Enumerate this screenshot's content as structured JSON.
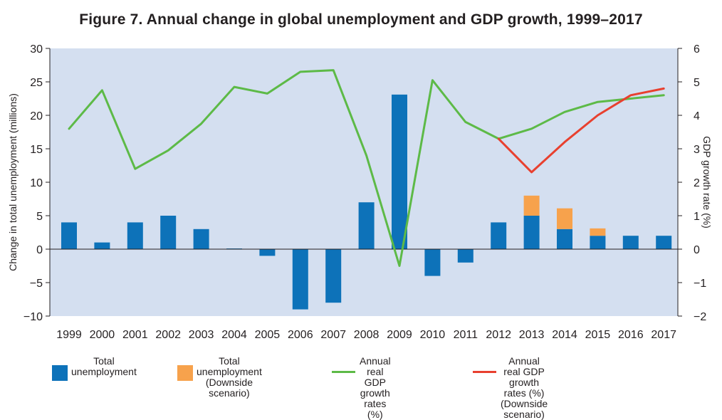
{
  "colors": {
    "plot_bg": "#d4dff0",
    "bar_total": "#0d72b9",
    "bar_downside": "#f7a24c",
    "line_gdp": "#5dba47",
    "line_gdp_downside": "#e8402f",
    "axis": "#231f20"
  },
  "chart_data": {
    "type": "bar",
    "title": "Figure 7. Annual change in global unemployment and GDP growth, 1999–2017",
    "ylabel": "Change in total unemployment (millions)",
    "y2label": "GDP growth rate (%)",
    "ylim": [
      -10,
      30
    ],
    "y_ticks": [
      30,
      25,
      20,
      15,
      10,
      5,
      0,
      -5,
      -10
    ],
    "y_tick_labels": [
      "30",
      "25",
      "20",
      "15",
      "10",
      "5",
      "0",
      "−5",
      "−10"
    ],
    "y2lim": [
      -2,
      6
    ],
    "y2_ticks": [
      6,
      5,
      4,
      3,
      2,
      1,
      0,
      -1,
      -2
    ],
    "y2_tick_labels": [
      "6",
      "5",
      "4",
      "3",
      "2",
      "1",
      "0",
      "−1",
      "−2"
    ],
    "categories": [
      "1999",
      "2000",
      "2001",
      "2002",
      "2003",
      "2004",
      "2005",
      "2006",
      "2007",
      "2008",
      "2009",
      "2010",
      "2011",
      "2012",
      "2013",
      "2014",
      "2015",
      "2016",
      "2017"
    ],
    "series": [
      {
        "name": "Total unemployment",
        "type": "bar",
        "axis": "left",
        "values": [
          4,
          1,
          4,
          5,
          3,
          0.1,
          -1,
          -9,
          -8,
          7,
          23.1,
          -4,
          -2,
          4,
          5,
          3,
          2,
          2,
          2
        ]
      },
      {
        "name": "Total unemployment (Downside scenario)",
        "type": "bar-stacked",
        "axis": "left",
        "values": [
          null,
          null,
          null,
          null,
          null,
          null,
          null,
          null,
          null,
          null,
          null,
          null,
          null,
          null,
          3,
          3.1,
          1.1,
          null,
          null
        ]
      },
      {
        "name": "Annual real GDP growth rates (%)",
        "type": "line",
        "axis": "right",
        "values": [
          3.6,
          4.75,
          2.4,
          2.95,
          3.75,
          4.85,
          4.65,
          5.3,
          5.35,
          2.8,
          -0.5,
          5.05,
          3.8,
          3.3,
          3.6,
          4.1,
          4.4,
          4.5,
          4.6
        ]
      },
      {
        "name": "Annual real GDP growth rates (%) (Downside scenario)",
        "type": "line",
        "axis": "right",
        "values": [
          null,
          null,
          null,
          null,
          null,
          null,
          null,
          null,
          null,
          null,
          null,
          null,
          null,
          3.3,
          2.3,
          3.2,
          4.0,
          4.6,
          4.8
        ]
      }
    ],
    "legend_position": "bottom",
    "grid": false
  },
  "legend": [
    {
      "label": "Total\nunemployment",
      "kind": "box",
      "color": "#0d72b9"
    },
    {
      "label": "Total unemployment\n(Downside scenario)",
      "kind": "box",
      "color": "#f7a24c"
    },
    {
      "label": "Annual real GDP\ngrowth rates (%)",
      "kind": "line",
      "color": "#5dba47"
    },
    {
      "label": "Annual real GDP growth rates (%)\n(Downside scenario)",
      "kind": "line",
      "color": "#e8402f"
    }
  ]
}
